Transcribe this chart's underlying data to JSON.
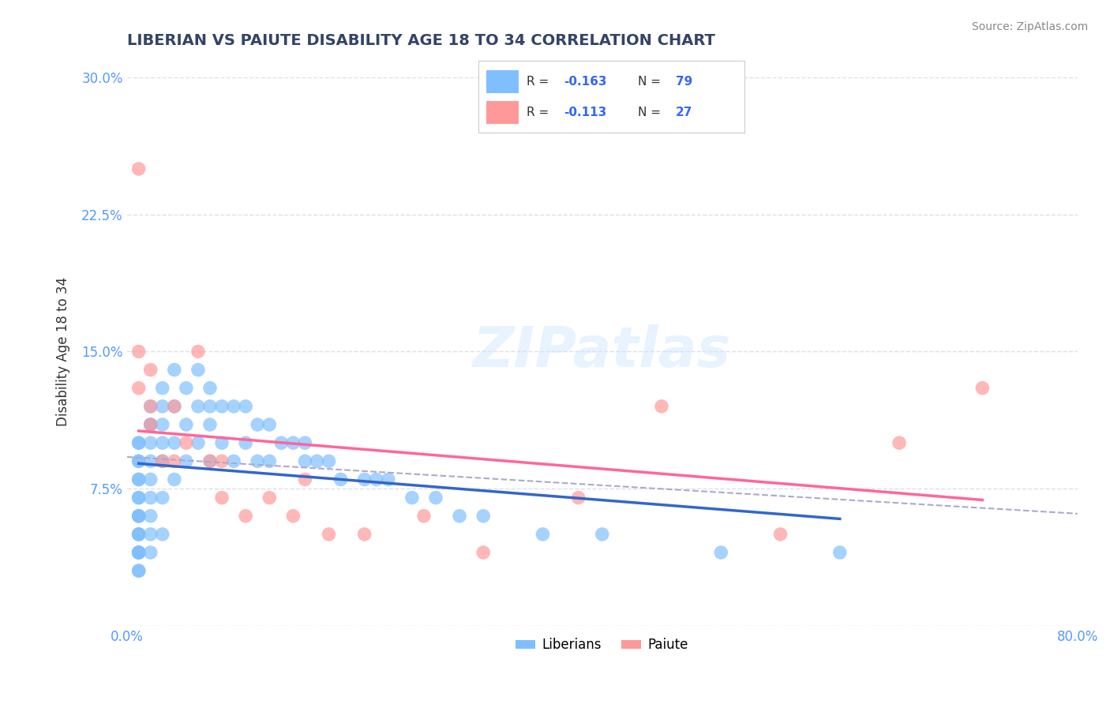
{
  "title": "LIBERIAN VS PAIUTE DISABILITY AGE 18 TO 34 CORRELATION CHART",
  "source": "Source: ZipAtlas.com",
  "xlabel_bottom": "",
  "ylabel": "Disability Age 18 to 34",
  "legend_labels": [
    "Liberians",
    "Paiute"
  ],
  "legend_r_n": [
    {
      "R": "-0.163",
      "N": "79"
    },
    {
      "R": "-0.113",
      "N": "27"
    }
  ],
  "xlim": [
    0.0,
    0.8
  ],
  "ylim": [
    0.0,
    0.3
  ],
  "xticks": [
    0.0,
    0.1,
    0.2,
    0.3,
    0.4,
    0.5,
    0.6,
    0.7,
    0.8
  ],
  "xtick_labels": [
    "0.0%",
    "",
    "",
    "",
    "",
    "",
    "",
    "",
    "80.0%"
  ],
  "ytick_positions": [
    0.0,
    0.075,
    0.15,
    0.225,
    0.3
  ],
  "ytick_labels": [
    "",
    "7.5%",
    "15.0%",
    "22.5%",
    "30.0%"
  ],
  "color_liberian": "#7fbfff",
  "color_paiute": "#ff9999",
  "color_line_liberian": "#3366cc",
  "color_line_paiute": "#ff6699",
  "color_dashed_line": "#aaaacc",
  "background_color": "#ffffff",
  "watermark": "ZIPatlas",
  "grid_color": "#ddddee",
  "liberian_x": [
    0.01,
    0.01,
    0.01,
    0.01,
    0.01,
    0.01,
    0.01,
    0.01,
    0.01,
    0.01,
    0.01,
    0.01,
    0.01,
    0.01,
    0.01,
    0.01,
    0.01,
    0.01,
    0.01,
    0.01,
    0.02,
    0.02,
    0.02,
    0.02,
    0.02,
    0.02,
    0.02,
    0.02,
    0.02,
    0.02,
    0.03,
    0.03,
    0.03,
    0.03,
    0.03,
    0.03,
    0.03,
    0.04,
    0.04,
    0.04,
    0.04,
    0.05,
    0.05,
    0.05,
    0.06,
    0.06,
    0.06,
    0.07,
    0.07,
    0.07,
    0.07,
    0.08,
    0.08,
    0.09,
    0.09,
    0.1,
    0.1,
    0.11,
    0.11,
    0.12,
    0.12,
    0.13,
    0.14,
    0.15,
    0.15,
    0.16,
    0.17,
    0.18,
    0.2,
    0.21,
    0.22,
    0.24,
    0.26,
    0.28,
    0.3,
    0.35,
    0.4,
    0.5,
    0.6
  ],
  "liberian_y": [
    0.09,
    0.1,
    0.1,
    0.09,
    0.08,
    0.08,
    0.07,
    0.07,
    0.06,
    0.06,
    0.06,
    0.05,
    0.05,
    0.05,
    0.04,
    0.04,
    0.04,
    0.04,
    0.03,
    0.03,
    0.12,
    0.11,
    0.11,
    0.1,
    0.09,
    0.08,
    0.07,
    0.06,
    0.05,
    0.04,
    0.13,
    0.12,
    0.11,
    0.1,
    0.09,
    0.07,
    0.05,
    0.14,
    0.12,
    0.1,
    0.08,
    0.13,
    0.11,
    0.09,
    0.14,
    0.12,
    0.1,
    0.13,
    0.12,
    0.11,
    0.09,
    0.12,
    0.1,
    0.12,
    0.09,
    0.12,
    0.1,
    0.11,
    0.09,
    0.11,
    0.09,
    0.1,
    0.1,
    0.1,
    0.09,
    0.09,
    0.09,
    0.08,
    0.08,
    0.08,
    0.08,
    0.07,
    0.07,
    0.06,
    0.06,
    0.05,
    0.05,
    0.04,
    0.04
  ],
  "paiute_x": [
    0.01,
    0.01,
    0.01,
    0.02,
    0.02,
    0.02,
    0.03,
    0.04,
    0.04,
    0.05,
    0.06,
    0.07,
    0.08,
    0.08,
    0.1,
    0.12,
    0.14,
    0.15,
    0.17,
    0.2,
    0.25,
    0.3,
    0.38,
    0.45,
    0.55,
    0.65,
    0.72
  ],
  "paiute_y": [
    0.25,
    0.15,
    0.13,
    0.14,
    0.12,
    0.11,
    0.09,
    0.12,
    0.09,
    0.1,
    0.15,
    0.09,
    0.09,
    0.07,
    0.06,
    0.07,
    0.06,
    0.08,
    0.05,
    0.05,
    0.06,
    0.04,
    0.07,
    0.12,
    0.05,
    0.1,
    0.13
  ]
}
